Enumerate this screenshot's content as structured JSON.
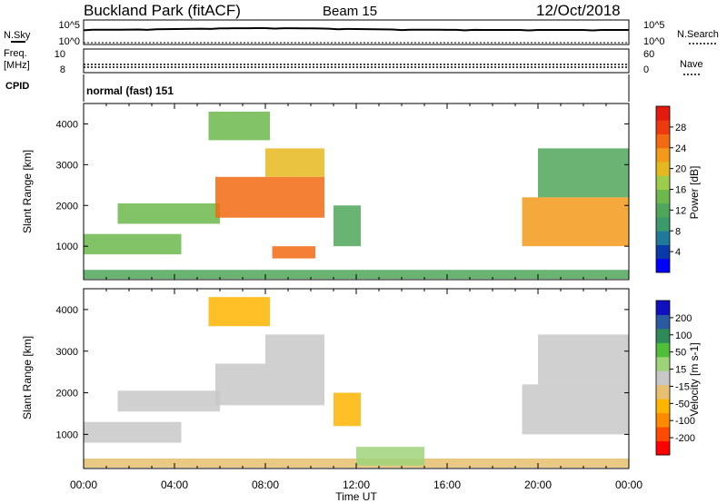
{
  "header": {
    "site": "Buckland Park (fitACF)",
    "beam": "Beam 15",
    "date": "12/Oct/2018"
  },
  "status_panels": {
    "nsky": {
      "label": "N.Sky",
      "left_ticks": [
        "10^5",
        "10^0"
      ],
      "right_ticks": [
        "10^5",
        "10^0"
      ],
      "right_label": "N.Search"
    },
    "freq": {
      "label_line1": "Freq.",
      "label_line2": "[MHz]",
      "left_ticks": [
        "10",
        "8"
      ],
      "right_ticks": [
        "60",
        "0"
      ],
      "right_label": "Nave"
    },
    "cpid": {
      "label": "CPID",
      "value": "normal (fast) 151"
    }
  },
  "time_axis": {
    "label": "Time UT",
    "ticks": [
      "00:00",
      "04:00",
      "08:00",
      "12:00",
      "16:00",
      "20:00",
      "00:00"
    ]
  },
  "colors": {
    "power": [
      "#0000ff",
      "#0a3aa8",
      "#1f7a9a",
      "#3a9a6a",
      "#4fa65a",
      "#6db84c",
      "#9ccc4a",
      "#e6b820",
      "#f39a1a",
      "#f26a12",
      "#ef3a10",
      "#e31a0d"
    ],
    "velocity": [
      "#ff0000",
      "#ff4a00",
      "#ff8a00",
      "#ffb400",
      "#e6c070",
      "#c8c8c8",
      "#9fd37a",
      "#4fbf3a",
      "#2f8a5a",
      "#2a5aa0",
      "#1010c0"
    ]
  },
  "chart_data": [
    {
      "type": "heatmap",
      "title": "",
      "xlabel": "Time UT",
      "ylabel": "Slant Range [km]",
      "xlim_hours": [
        0,
        24
      ],
      "ylim_km": [
        180,
        4500
      ],
      "yticks": [
        1000,
        2000,
        3000,
        4000
      ],
      "colorbar": {
        "label": "Power [dB]",
        "ticks": [
          "28",
          "24",
          "20",
          "16",
          "12",
          "8",
          "4"
        ],
        "range": [
          0,
          30
        ]
      },
      "echo_regions": [
        {
          "t_start": 0.0,
          "t_end": 24.0,
          "range_low": 200,
          "range_high": 420,
          "value": 10
        },
        {
          "t_start": 0.0,
          "t_end": 4.3,
          "range_low": 800,
          "range_high": 1300,
          "value": 14
        },
        {
          "t_start": 1.5,
          "t_end": 6.0,
          "range_low": 1550,
          "range_high": 2050,
          "value": 14
        },
        {
          "t_start": 5.8,
          "t_end": 10.6,
          "range_low": 1700,
          "range_high": 2700,
          "value": 24
        },
        {
          "t_start": 8.0,
          "t_end": 10.6,
          "range_low": 2700,
          "range_high": 3400,
          "value": 19
        },
        {
          "t_start": 5.5,
          "t_end": 8.2,
          "range_low": 3600,
          "range_high": 4300,
          "value": 13
        },
        {
          "t_start": 8.3,
          "t_end": 10.2,
          "range_low": 700,
          "range_high": 1000,
          "value": 24
        },
        {
          "t_start": 11.0,
          "t_end": 12.2,
          "range_low": 1000,
          "range_high": 2000,
          "value": 12
        },
        {
          "t_start": 19.3,
          "t_end": 24.0,
          "range_low": 1000,
          "range_high": 2200,
          "value": 20
        },
        {
          "t_start": 20.0,
          "t_end": 24.0,
          "range_low": 2200,
          "range_high": 3400,
          "value": 12
        }
      ]
    },
    {
      "type": "heatmap",
      "title": "",
      "xlabel": "Time UT",
      "ylabel": "Slant Range [km]",
      "xlim_hours": [
        0,
        24
      ],
      "ylim_km": [
        180,
        4500
      ],
      "yticks": [
        1000,
        2000,
        3000,
        4000
      ],
      "colorbar": {
        "label": "Velocity [m s-1]",
        "ticks": [
          "200",
          "100",
          "50",
          "15",
          "-15",
          "-50",
          "-100",
          "-200"
        ],
        "range": [
          -250,
          250
        ]
      },
      "echo_regions": [
        {
          "t_start": 0.0,
          "t_end": 24.0,
          "range_low": 200,
          "range_high": 420,
          "value": -60
        },
        {
          "t_start": 0.0,
          "t_end": 4.3,
          "range_low": 800,
          "range_high": 1300,
          "value": 0
        },
        {
          "t_start": 1.5,
          "t_end": 6.0,
          "range_low": 1550,
          "range_high": 2050,
          "value": 0
        },
        {
          "t_start": 5.8,
          "t_end": 10.6,
          "range_low": 1700,
          "range_high": 2700,
          "value": 0
        },
        {
          "t_start": 8.0,
          "t_end": 10.6,
          "range_low": 2700,
          "range_high": 3400,
          "value": 0
        },
        {
          "t_start": 5.5,
          "t_end": 8.2,
          "range_low": 3600,
          "range_high": 4300,
          "value": -80
        },
        {
          "t_start": 11.0,
          "t_end": 12.2,
          "range_low": 1200,
          "range_high": 2000,
          "value": -80
        },
        {
          "t_start": 12.0,
          "t_end": 15.0,
          "range_low": 250,
          "range_high": 700,
          "value": 40
        },
        {
          "t_start": 19.3,
          "t_end": 24.0,
          "range_low": 1000,
          "range_high": 2200,
          "value": 0
        },
        {
          "t_start": 20.0,
          "t_end": 24.0,
          "range_low": 2200,
          "range_high": 3400,
          "value": 0
        }
      ]
    }
  ]
}
